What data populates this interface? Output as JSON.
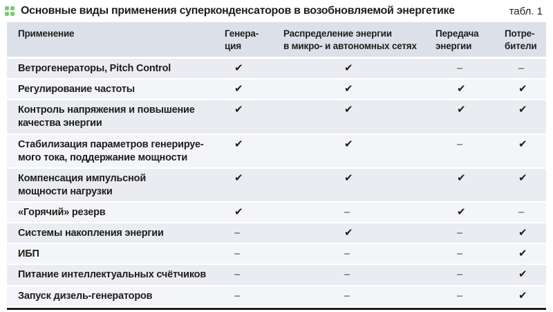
{
  "page": {
    "title": "Основные виды применения суперконденсаторов в возобновляемой энергетике",
    "table_label": "табл. 1",
    "accent_green": "#7cc97c",
    "header_bg": "#dce0e9",
    "row_odd_bg": "#eaecf2",
    "row_even_bg": "#f4f5f9",
    "text_color": "#1d1d1b"
  },
  "table": {
    "check_glyph": "✔",
    "dash_glyph": "–",
    "columns": [
      {
        "label": "Применение"
      },
      {
        "label": "Генера-\nция"
      },
      {
        "label": "Распределение энергии\nв микро- и автономных сетях"
      },
      {
        "label": "Передача\nэнергии"
      },
      {
        "label": "Потре-\nбители"
      }
    ],
    "rows": [
      {
        "name": "Ветрогенераторы, Pitch Control",
        "values": [
          true,
          true,
          false,
          false
        ]
      },
      {
        "name": "Регулирование частоты",
        "values": [
          true,
          true,
          true,
          true
        ]
      },
      {
        "name": "Контроль напряжения и повышение\nкачества энергии",
        "values": [
          true,
          true,
          true,
          true
        ]
      },
      {
        "name": "Стабилизация параметров генерируе-\nмого тока, поддержание мощности",
        "values": [
          true,
          true,
          false,
          true
        ]
      },
      {
        "name": "Компенсация импульсной\nмощности нагрузки",
        "values": [
          true,
          true,
          true,
          true
        ]
      },
      {
        "name": "«Горячий» резерв",
        "values": [
          true,
          false,
          true,
          false
        ]
      },
      {
        "name": "Системы накопления энергии",
        "values": [
          false,
          true,
          false,
          true
        ]
      },
      {
        "name": "ИБП",
        "values": [
          false,
          false,
          false,
          true
        ]
      },
      {
        "name": "Питание интеллектуальных счётчиков",
        "values": [
          false,
          false,
          false,
          true
        ]
      },
      {
        "name": "Запуск дизель-генераторов",
        "values": [
          false,
          false,
          false,
          true
        ]
      }
    ]
  }
}
